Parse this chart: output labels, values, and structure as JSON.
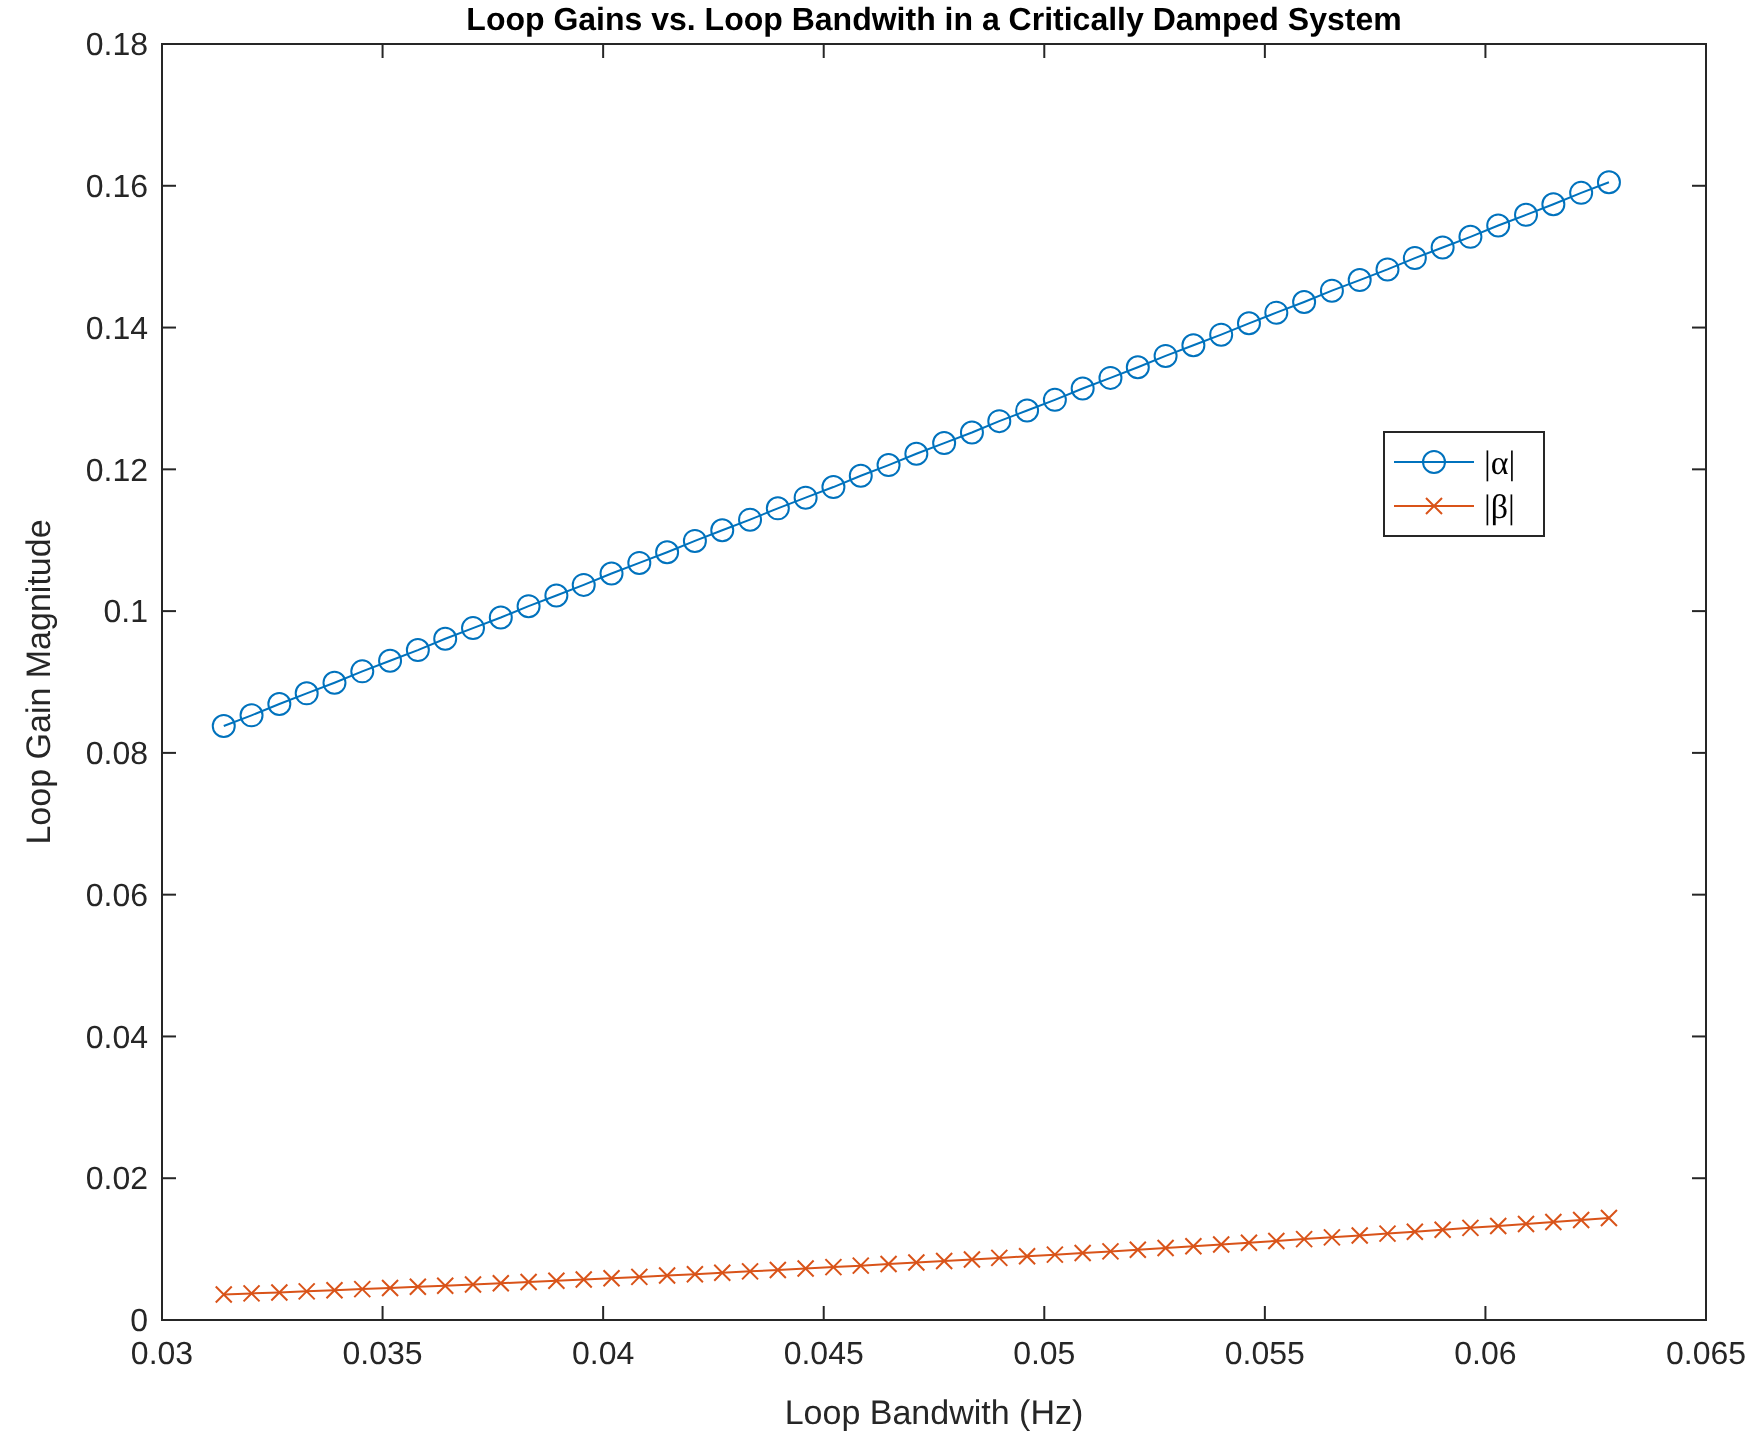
{
  "chart_data": {
    "type": "line",
    "title": "Loop Gains vs. Loop Bandwith in a Critically Damped System",
    "xlabel": "Loop Bandwith (Hz)",
    "ylabel": "Loop Gain Magnitude",
    "x": [
      0.0314,
      0.03203,
      0.03266,
      0.03328,
      0.03391,
      0.03454,
      0.03517,
      0.0358,
      0.03642,
      0.03705,
      0.03768,
      0.03831,
      0.03894,
      0.03956,
      0.04019,
      0.04082,
      0.04145,
      0.04208,
      0.0427,
      0.04333,
      0.04396,
      0.04459,
      0.04522,
      0.04584,
      0.04647,
      0.0471,
      0.04773,
      0.04836,
      0.04898,
      0.04961,
      0.05024,
      0.05087,
      0.0515,
      0.05212,
      0.05275,
      0.05338,
      0.05401,
      0.05464,
      0.05526,
      0.05589,
      0.05652,
      0.05715,
      0.05778,
      0.0584,
      0.05903,
      0.05966,
      0.06029,
      0.06092,
      0.06154,
      0.06217,
      0.0628
    ],
    "series": [
      {
        "name": "|α|",
        "color": "#0072bd",
        "marker": "circle",
        "values": [
          0.0838,
          0.0853,
          0.0869,
          0.0884,
          0.0899,
          0.0915,
          0.093,
          0.0945,
          0.0961,
          0.0976,
          0.0991,
          0.1007,
          0.1022,
          0.1037,
          0.1053,
          0.1068,
          0.1083,
          0.1099,
          0.1114,
          0.1129,
          0.1145,
          0.116,
          0.1175,
          0.1191,
          0.1206,
          0.1222,
          0.1237,
          0.1252,
          0.1268,
          0.1283,
          0.1298,
          0.1314,
          0.1329,
          0.1344,
          0.136,
          0.1375,
          0.139,
          0.1406,
          0.1421,
          0.1436,
          0.1452,
          0.1467,
          0.1482,
          0.1498,
          0.1513,
          0.1528,
          0.1544,
          0.1559,
          0.1574,
          0.159,
          0.1605
        ]
      },
      {
        "name": "|β|",
        "color": "#d95319",
        "marker": "cross",
        "values": [
          0.0036,
          0.00375,
          0.00389,
          0.00404,
          0.0042,
          0.00436,
          0.00452,
          0.00468,
          0.00484,
          0.00501,
          0.00518,
          0.00536,
          0.00554,
          0.00572,
          0.0059,
          0.00608,
          0.00627,
          0.00646,
          0.00666,
          0.00686,
          0.00706,
          0.00726,
          0.00746,
          0.00767,
          0.00789,
          0.0081,
          0.00832,
          0.00854,
          0.00876,
          0.00899,
          0.00922,
          0.00945,
          0.00968,
          0.00992,
          0.01016,
          0.0104,
          0.01065,
          0.0109,
          0.01115,
          0.01141,
          0.01166,
          0.01192,
          0.01219,
          0.01245,
          0.01272,
          0.013,
          0.01327,
          0.01355,
          0.01383,
          0.01411,
          0.0144
        ]
      }
    ],
    "xlim": [
      0.03,
      0.065
    ],
    "xticks": [
      0.03,
      0.035,
      0.04,
      0.045,
      0.05,
      0.055,
      0.06,
      0.065
    ],
    "ylim": [
      0,
      0.18
    ],
    "yticks": [
      0,
      0.02,
      0.04,
      0.06,
      0.08,
      0.1,
      0.12,
      0.14,
      0.16,
      0.18
    ],
    "grid": false,
    "legend": "right",
    "line_style": "solid"
  }
}
